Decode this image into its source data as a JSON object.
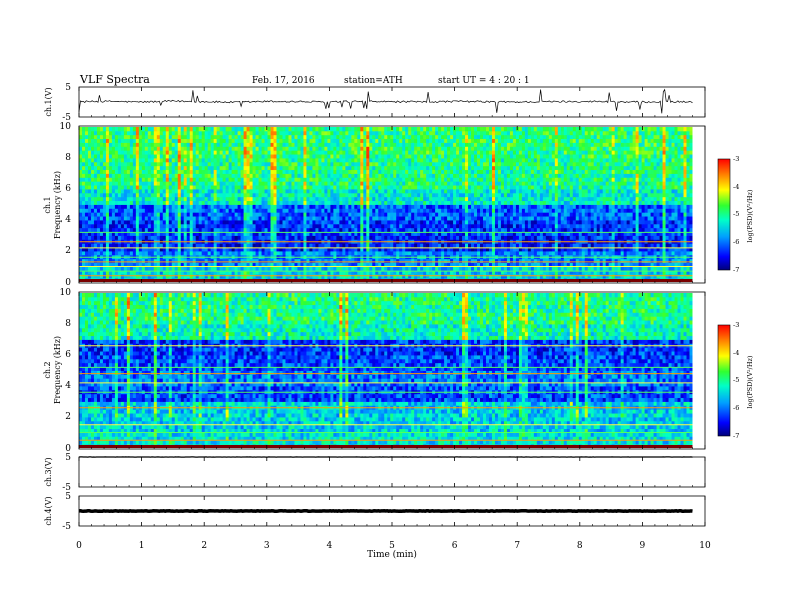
{
  "header": {
    "title": "VLF  Spectra",
    "date": "Feb. 17, 2016",
    "station": "station=ATH",
    "start": "start  UT  =   4  : 20 : 1"
  },
  "chart_data": [
    {
      "type": "line",
      "name": "ch1-waveform",
      "ylabel": "ch.1(V)",
      "ylim": [
        -5,
        5
      ],
      "yticks": [
        "5",
        "-5"
      ],
      "x": [
        0,
        0.5,
        1,
        1.5,
        2,
        2.5,
        3,
        3.5,
        4,
        4.5,
        5,
        5.5,
        6,
        6.5,
        7,
        7.5,
        8,
        8.5,
        9,
        9.5,
        9.8
      ],
      "y": [
        0.1,
        0.2,
        0.0,
        0.3,
        0.1,
        -0.1,
        0.2,
        0.1,
        0.0,
        0.2,
        0.1,
        0.0,
        0.2,
        0.1,
        0.0,
        0.1,
        0.2,
        0.1,
        0.0,
        0.1,
        0.0
      ]
    },
    {
      "type": "heatmap",
      "name": "ch1-spectrogram",
      "ylabel_top": "ch.1",
      "ylabel": "Frequency  (kHz)",
      "ylim": [
        0,
        10
      ],
      "yticks": [
        "0",
        "2",
        "4",
        "6",
        "8",
        "10"
      ],
      "colorbar": {
        "label": "log(PSD)(V²/Hz)",
        "ticks": [
          "-3",
          "-4",
          "-5",
          "-6",
          "-7"
        ],
        "range": [
          -7,
          -3
        ]
      },
      "freq_bands_khz": [
        0,
        1,
        2,
        3,
        4,
        5,
        6,
        7,
        8,
        9,
        10
      ],
      "mean_log_psd": [
        -5.5,
        -5.9,
        -6.4,
        -6.3,
        -6.1,
        -5.3,
        -5.0,
        -5.0,
        -4.9,
        -4.9
      ],
      "lines_khz": [
        0.4,
        0.7,
        1.0,
        1.3,
        1.6,
        2.2,
        2.6,
        3.2
      ]
    },
    {
      "type": "heatmap",
      "name": "ch2-spectrogram",
      "ylabel_top": "ch.2",
      "ylabel": "Frequency  (kHz)",
      "ylim": [
        0,
        10
      ],
      "yticks": [
        "0",
        "2",
        "4",
        "6",
        "8",
        "10"
      ],
      "colorbar": {
        "label": "log(PSD)(V²/Hz)",
        "ticks": [
          "-3",
          "-4",
          "-5",
          "-6",
          "-7"
        ],
        "range": [
          -7,
          -3
        ]
      },
      "freq_bands_khz": [
        0,
        1,
        2,
        3,
        4,
        5,
        6,
        7,
        8,
        9,
        10
      ],
      "mean_log_psd": [
        -5.4,
        -5.5,
        -5.5,
        -6.2,
        -6.0,
        -6.2,
        -6.3,
        -5.2,
        -5.0,
        -5.0
      ],
      "lines_khz": [
        0.5,
        1.0,
        1.5,
        2.6,
        3.6,
        4.2,
        4.8,
        5.2,
        6.6
      ]
    },
    {
      "type": "line",
      "name": "ch3-waveform",
      "ylabel": "ch.3(V)",
      "ylim": [
        -5,
        5
      ],
      "yticks": [
        "5",
        "-5"
      ],
      "x": [
        0,
        9.8
      ],
      "y": [
        5,
        5
      ]
    },
    {
      "type": "line",
      "name": "ch4-waveform",
      "ylabel": "ch.4(V)",
      "ylim": [
        -5,
        5
      ],
      "yticks": [
        "5",
        "-5"
      ],
      "x": [
        0,
        9.8
      ],
      "y": [
        0,
        0
      ]
    }
  ],
  "x_axis": {
    "label": "Time  (min)",
    "ticks": [
      "0",
      "1",
      "2",
      "3",
      "4",
      "5",
      "6",
      "7",
      "8",
      "9",
      "10"
    ],
    "range": [
      0,
      10
    ],
    "data_end": 9.8
  }
}
